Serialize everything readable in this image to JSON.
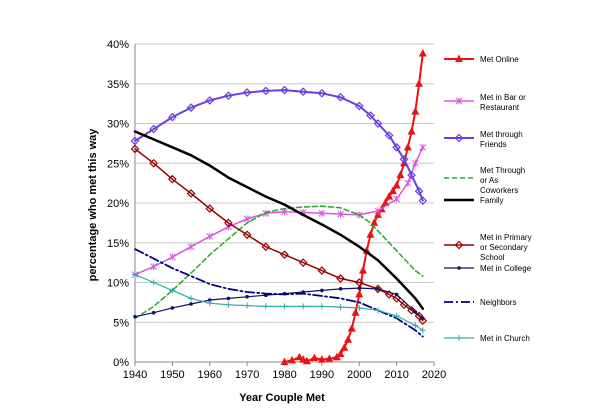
{
  "chart_data": {
    "type": "line",
    "xlabel": "Year Couple Met",
    "ylabel": "percentage who met this way",
    "xlim": [
      1940,
      2020
    ],
    "ylim": [
      0,
      40
    ],
    "xticks": [
      1940,
      1950,
      1960,
      1970,
      1980,
      1990,
      2000,
      2010,
      2020
    ],
    "xtick_labels": [
      "1940",
      "1950",
      "1960",
      "1970",
      "1980",
      "1990",
      "2000",
      "2010",
      "2020"
    ],
    "yticks": [
      0,
      5,
      10,
      15,
      20,
      25,
      30,
      35,
      40
    ],
    "ytick_labels": [
      "0%",
      "5%",
      "10%",
      "15%",
      "20%",
      "25%",
      "30%",
      "35%",
      "40%"
    ],
    "legend_position": "right",
    "series": [
      {
        "name": "Met Online",
        "legend_lines": [
          "Met Online"
        ],
        "color": "#ee1111",
        "dash": "solid",
        "marker": "triangle",
        "width": 2,
        "x": [
          1980,
          1982,
          1984,
          1985,
          1986,
          1988,
          1990,
          1992,
          1994,
          1995,
          1996,
          1997,
          1998,
          1999,
          2000,
          2001,
          2002,
          2003,
          2004,
          2005,
          2006,
          2007,
          2008,
          2009,
          2010,
          2011,
          2012,
          2013,
          2014,
          2015,
          2016,
          2017
        ],
        "y": [
          0,
          0.2,
          0.6,
          0.3,
          0.1,
          0.5,
          0.3,
          0.4,
          0.6,
          1.0,
          1.8,
          2.8,
          4.2,
          6.2,
          8.5,
          11.5,
          14.0,
          16.0,
          17.5,
          18.5,
          19.2,
          20.0,
          20.8,
          21.5,
          22.2,
          23.5,
          25.0,
          27.0,
          29.0,
          31.5,
          35.0,
          38.8
        ]
      },
      {
        "name": "Met in Bar or Restaurant",
        "legend_lines": [
          "Met in Bar or",
          "Restaurant"
        ],
        "color": "#dd55dd",
        "dash": "solid",
        "marker": "star",
        "width": 1.5,
        "x": [
          1940,
          1945,
          1950,
          1955,
          1960,
          1965,
          1970,
          1975,
          1980,
          1985,
          1990,
          1995,
          2000,
          2005,
          2010,
          2013,
          2015,
          2017
        ],
        "y": [
          11.0,
          12.0,
          13.2,
          14.5,
          15.8,
          17.0,
          18.0,
          18.7,
          18.9,
          18.8,
          18.7,
          18.6,
          18.5,
          19.0,
          20.5,
          22.5,
          25.0,
          27.0
        ]
      },
      {
        "name": "Met through Friends",
        "legend_lines": [
          "Met through",
          "Friends"
        ],
        "color": "#6a3ee0",
        "dash": "solid",
        "marker": "diamond",
        "width": 2,
        "x": [
          1940,
          1945,
          1950,
          1955,
          1960,
          1965,
          1970,
          1975,
          1980,
          1985,
          1990,
          1995,
          2000,
          2003,
          2005,
          2008,
          2010,
          2012,
          2014,
          2016,
          2017
        ],
        "y": [
          27.8,
          29.3,
          30.8,
          32.0,
          32.9,
          33.5,
          33.9,
          34.1,
          34.2,
          34.0,
          33.8,
          33.3,
          32.2,
          31.0,
          30.0,
          28.5,
          27.0,
          25.5,
          23.5,
          21.5,
          20.3
        ]
      },
      {
        "name": "Met Through or As Coworkers",
        "legend_lines": [
          "Met Through",
          "or As",
          "Coworkers"
        ],
        "color": "#22aa22",
        "dash": "dashed",
        "marker": "none",
        "width": 1.5,
        "x": [
          1940,
          1945,
          1950,
          1955,
          1960,
          1965,
          1970,
          1975,
          1980,
          1985,
          1990,
          1995,
          2000,
          2003,
          2005,
          2008,
          2010,
          2013,
          2015,
          2017
        ],
        "y": [
          5.5,
          7.0,
          9.0,
          11.2,
          13.5,
          15.5,
          17.5,
          18.8,
          19.3,
          19.5,
          19.6,
          19.4,
          18.5,
          17.5,
          16.5,
          15.0,
          14.0,
          12.5,
          11.5,
          10.8
        ]
      },
      {
        "name": "Family",
        "legend_lines": [
          "Family"
        ],
        "color": "#000000",
        "dash": "solid",
        "marker": "none",
        "width": 2.5,
        "x": [
          1940,
          1945,
          1950,
          1955,
          1960,
          1965,
          1970,
          1975,
          1980,
          1985,
          1990,
          1995,
          2000,
          2005,
          2010,
          2015,
          2017
        ],
        "y": [
          29.0,
          28.0,
          27.0,
          26.0,
          24.7,
          23.2,
          22.0,
          20.8,
          19.8,
          18.5,
          17.3,
          16.0,
          14.5,
          12.8,
          10.5,
          8.0,
          6.7
        ]
      },
      {
        "name": "Met in Primary or Secondary School",
        "legend_lines": [
          "Met in Primary",
          "or Secondary",
          "School"
        ],
        "color": "#990000",
        "dash": "solid",
        "marker": "diamond",
        "width": 1.5,
        "x": [
          1940,
          1945,
          1950,
          1955,
          1960,
          1965,
          1970,
          1975,
          1980,
          1985,
          1990,
          1995,
          2000,
          2005,
          2008,
          2010,
          2012,
          2014,
          2016,
          2017
        ],
        "y": [
          26.8,
          25.0,
          23.0,
          21.2,
          19.3,
          17.5,
          16.0,
          14.5,
          13.5,
          12.5,
          11.5,
          10.5,
          10.0,
          9.2,
          8.5,
          8.0,
          7.2,
          6.5,
          5.8,
          5.2
        ]
      },
      {
        "name": "Met in College",
        "legend_lines": [
          "Met in College"
        ],
        "color": "#111166",
        "dash": "solid",
        "marker": "dot",
        "width": 1.2,
        "x": [
          1940,
          1945,
          1950,
          1955,
          1960,
          1965,
          1970,
          1975,
          1980,
          1985,
          1990,
          1995,
          2000,
          2005,
          2010,
          2015,
          2017
        ],
        "y": [
          5.7,
          6.2,
          6.8,
          7.3,
          7.8,
          8.0,
          8.2,
          8.4,
          8.6,
          8.8,
          9.0,
          9.2,
          9.3,
          9.2,
          8.5,
          6.3,
          5.5
        ]
      },
      {
        "name": "Neighbors",
        "legend_lines": [
          "Neighbors"
        ],
        "color": "#000088",
        "dash": "dashdot",
        "marker": "none",
        "width": 1.8,
        "x": [
          1940,
          1945,
          1950,
          1955,
          1960,
          1965,
          1970,
          1975,
          1980,
          1985,
          1990,
          1995,
          2000,
          2005,
          2010,
          2015,
          2017
        ],
        "y": [
          14.2,
          13.0,
          11.8,
          10.8,
          9.8,
          9.2,
          8.8,
          8.6,
          8.5,
          8.6,
          8.3,
          8.0,
          7.5,
          6.5,
          5.5,
          4.0,
          3.2
        ]
      },
      {
        "name": "Met in Church",
        "legend_lines": [
          "Met in Church"
        ],
        "color": "#33aaaa",
        "dash": "solid",
        "marker": "plus",
        "width": 1.2,
        "x": [
          1940,
          1945,
          1950,
          1955,
          1960,
          1965,
          1970,
          1975,
          1980,
          1985,
          1990,
          1995,
          2000,
          2005,
          2010,
          2015,
          2017
        ],
        "y": [
          11.0,
          10.0,
          9.0,
          8.0,
          7.4,
          7.2,
          7.1,
          7.0,
          7.0,
          7.0,
          7.0,
          6.9,
          6.8,
          6.5,
          5.8,
          4.6,
          4.0
        ]
      }
    ]
  }
}
